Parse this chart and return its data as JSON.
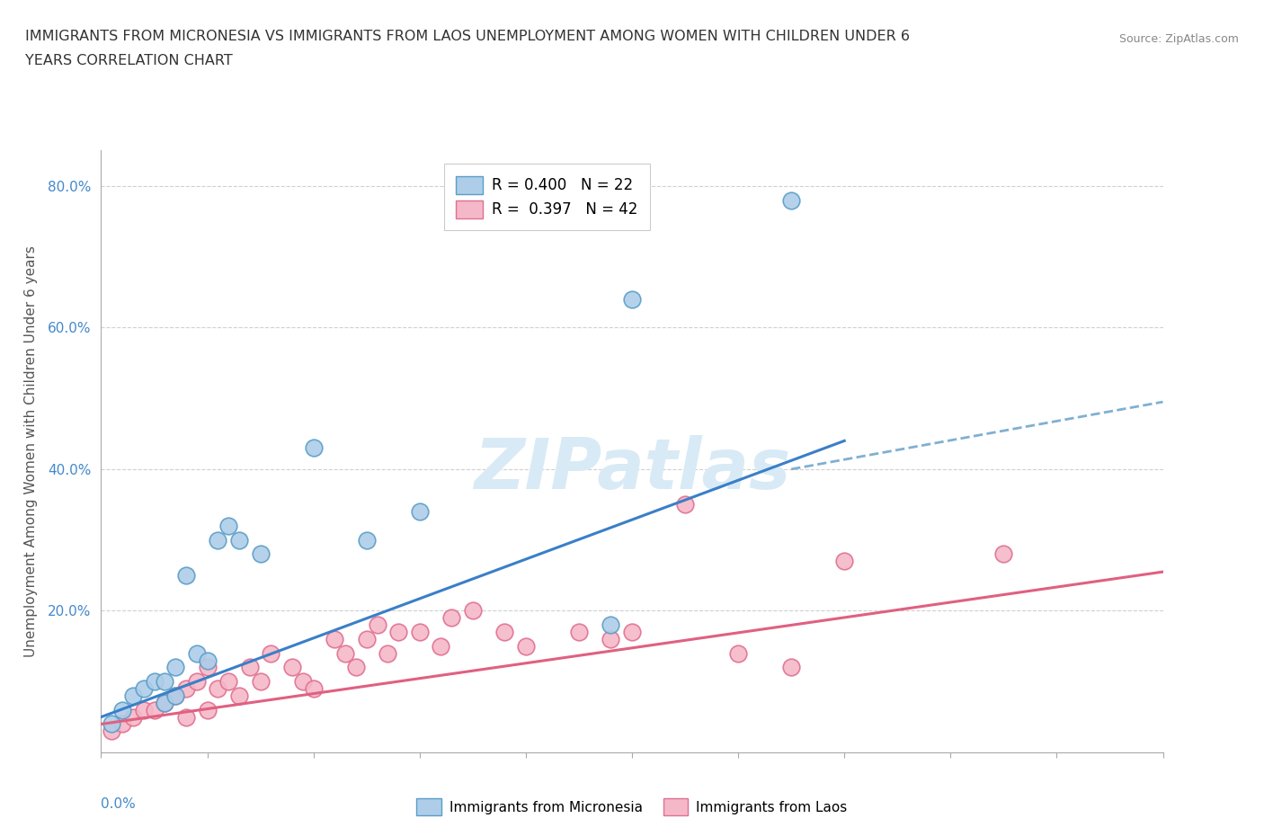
{
  "title_line1": "IMMIGRANTS FROM MICRONESIA VS IMMIGRANTS FROM LAOS UNEMPLOYMENT AMONG WOMEN WITH CHILDREN UNDER 6",
  "title_line2": "YEARS CORRELATION CHART",
  "source": "Source: ZipAtlas.com",
  "ylabel": "Unemployment Among Women with Children Under 6 years",
  "xlim": [
    0.0,
    0.1
  ],
  "ylim": [
    0.0,
    0.85
  ],
  "ytick_values": [
    0.0,
    0.2,
    0.4,
    0.6,
    0.8
  ],
  "ytick_labels": [
    "",
    "20.0%",
    "40.0%",
    "60.0%",
    "80.0%"
  ],
  "xtick_values": [
    0.0,
    0.01,
    0.02,
    0.03,
    0.04,
    0.05,
    0.06,
    0.07,
    0.08,
    0.09,
    0.1
  ],
  "grid_color": "#d0d0d0",
  "background_color": "#ffffff",
  "legend_r_micro": "R = 0.400",
  "legend_n_micro": "N = 22",
  "legend_r_laos": "R =  0.397",
  "legend_n_laos": "N = 42",
  "micro_color": "#aecde8",
  "laos_color": "#f5b8c8",
  "micro_edge_color": "#5a9ec8",
  "laos_edge_color": "#e07090",
  "trend_micro_color": "#3a7fc8",
  "trend_laos_color": "#e06080",
  "trend_dash_color": "#80b0d0",
  "watermark_color": "#d8eaf5",
  "micro_scatter_x": [
    0.001,
    0.002,
    0.003,
    0.004,
    0.005,
    0.006,
    0.006,
    0.007,
    0.007,
    0.008,
    0.009,
    0.01,
    0.011,
    0.012,
    0.013,
    0.015,
    0.02,
    0.025,
    0.03,
    0.048,
    0.05,
    0.065
  ],
  "micro_scatter_y": [
    0.04,
    0.06,
    0.08,
    0.09,
    0.1,
    0.1,
    0.07,
    0.12,
    0.08,
    0.25,
    0.14,
    0.13,
    0.3,
    0.32,
    0.3,
    0.28,
    0.43,
    0.3,
    0.34,
    0.18,
    0.64,
    0.78
  ],
  "laos_scatter_x": [
    0.001,
    0.002,
    0.003,
    0.004,
    0.005,
    0.006,
    0.007,
    0.008,
    0.008,
    0.009,
    0.01,
    0.01,
    0.011,
    0.012,
    0.013,
    0.014,
    0.015,
    0.016,
    0.018,
    0.019,
    0.02,
    0.022,
    0.023,
    0.024,
    0.025,
    0.026,
    0.027,
    0.028,
    0.03,
    0.032,
    0.033,
    0.035,
    0.038,
    0.04,
    0.045,
    0.048,
    0.05,
    0.055,
    0.06,
    0.065,
    0.07,
    0.085
  ],
  "laos_scatter_y": [
    0.03,
    0.04,
    0.05,
    0.06,
    0.06,
    0.07,
    0.08,
    0.05,
    0.09,
    0.1,
    0.06,
    0.12,
    0.09,
    0.1,
    0.08,
    0.12,
    0.1,
    0.14,
    0.12,
    0.1,
    0.09,
    0.16,
    0.14,
    0.12,
    0.16,
    0.18,
    0.14,
    0.17,
    0.17,
    0.15,
    0.19,
    0.2,
    0.17,
    0.15,
    0.17,
    0.16,
    0.17,
    0.35,
    0.14,
    0.12,
    0.27,
    0.28
  ],
  "trend_micro_x0": 0.0,
  "trend_micro_y0": 0.05,
  "trend_micro_x1": 0.07,
  "trend_micro_y1": 0.44,
  "trend_laos_x0": 0.0,
  "trend_laos_y0": 0.04,
  "trend_laos_x1": 0.1,
  "trend_laos_y1": 0.255,
  "trend_dash_x0": 0.065,
  "trend_dash_y0": 0.4,
  "trend_dash_x1": 0.1,
  "trend_dash_y1": 0.495
}
